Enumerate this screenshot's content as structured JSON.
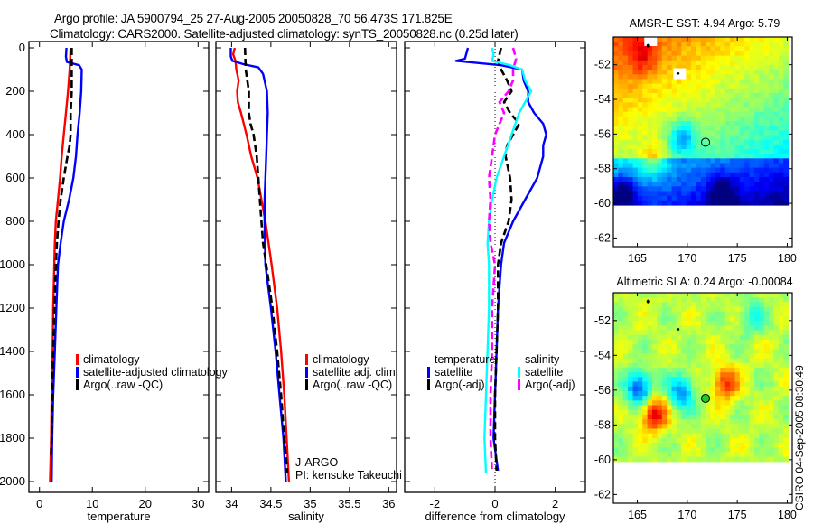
{
  "header": {
    "line1": "Argo profile: JA 5900794_25 27-Aug-2005 20050828_70 56.473S 171.825E",
    "line2": "Climatology: CARS2000. Satellite-adjusted climatology: synTS_20050828.nc (0.25d later)"
  },
  "footer_stamp": "CSIRO 04-Sep-2005 08:30:49",
  "colors": {
    "climatology": "#ff0000",
    "satellite": "#0000ff",
    "argo": "#000000",
    "sal_satellite": "#00ffff",
    "sal_argo": "#ff00ff"
  },
  "chart_data": [
    {
      "type": "line",
      "name": "temperature-profile",
      "xlabel": "temperature",
      "ylabel": "",
      "xlim": [
        -2,
        32
      ],
      "ylim": [
        2050,
        0
      ],
      "xticks": [
        0,
        10,
        20,
        30
      ],
      "yticks": [
        0,
        200,
        400,
        600,
        800,
        1000,
        1200,
        1400,
        1600,
        1800,
        2000
      ],
      "legend": {
        "placement": "center-right",
        "entries": [
          "climatology",
          "satellite-adjusted climatology",
          "Argo(..raw -QC)"
        ]
      },
      "series": [
        {
          "name": "climatology",
          "color_key": "climatology",
          "style": "solid",
          "depth": [
            0,
            50,
            100,
            200,
            300,
            400,
            500,
            600,
            700,
            800,
            900,
            1000,
            1200,
            1400,
            1600,
            1800,
            2000
          ],
          "values": [
            5.9,
            5.8,
            5.7,
            5.4,
            5.0,
            4.6,
            4.2,
            3.9,
            3.5,
            3.1,
            2.9,
            2.8,
            2.6,
            2.5,
            2.3,
            2.2,
            2.0
          ]
        },
        {
          "name": "satellite-adjusted climatology",
          "color_key": "satellite",
          "style": "solid",
          "depth": [
            0,
            40,
            65,
            80,
            100,
            200,
            300,
            400,
            500,
            600,
            700,
            800,
            900,
            1000,
            1200,
            1400,
            1600,
            1800,
            2000
          ],
          "values": [
            5.1,
            5.0,
            5.2,
            7.5,
            8.0,
            7.9,
            7.6,
            7.2,
            6.9,
            6.4,
            5.6,
            4.6,
            4.0,
            3.5,
            3.2,
            2.9,
            2.6,
            2.4,
            2.3
          ]
        },
        {
          "name": "Argo(..raw -QC)",
          "color_key": "argo",
          "style": "dashed",
          "depth": [
            0,
            100,
            200,
            300,
            400,
            450,
            500,
            600,
            700,
            800,
            900,
            1000,
            1200,
            1400,
            1600,
            1800,
            1880
          ],
          "values": [
            6.1,
            6.1,
            6.1,
            5.9,
            5.9,
            5.7,
            5.3,
            4.6,
            4.0,
            3.6,
            3.3,
            3.1,
            2.8,
            2.6,
            2.4,
            2.3,
            2.2
          ]
        }
      ]
    },
    {
      "type": "line",
      "name": "salinity-profile",
      "xlabel": "salinity",
      "ylabel": "",
      "xlim": [
        33.8,
        36.1
      ],
      "ylim": [
        2050,
        0
      ],
      "xticks": [
        34,
        34.5,
        35,
        35.5,
        36
      ],
      "xtick_labels": [
        "34",
        "34.5",
        "35",
        "35.5",
        "36"
      ],
      "legend": {
        "placement": "center-right",
        "entries": [
          "climatology",
          "satellite adj. clim.",
          "Argo(..raw -QC)"
        ]
      },
      "annotations": [
        "J-ARGO",
        "PI: kensuke Takeuchi"
      ],
      "series": [
        {
          "name": "climatology",
          "color_key": "climatology",
          "style": "solid",
          "depth": [
            0,
            30,
            60,
            100,
            150,
            200,
            250,
            300,
            400,
            500,
            600,
            700,
            800,
            1000,
            1200,
            1400,
            1600,
            1800,
            2000
          ],
          "values": [
            34.04,
            34.02,
            34.05,
            34.06,
            34.09,
            34.07,
            34.08,
            34.12,
            34.19,
            34.25,
            34.33,
            34.38,
            34.43,
            34.51,
            34.58,
            34.63,
            34.67,
            34.7,
            34.73
          ]
        },
        {
          "name": "satellite adj. clim.",
          "color_key": "satellite",
          "style": "solid",
          "depth": [
            0,
            40,
            60,
            75,
            90,
            120,
            200,
            300,
            400,
            500,
            600,
            700,
            800,
            1000,
            1200,
            1400,
            1600,
            1800,
            2000
          ],
          "values": [
            33.99,
            33.99,
            34.01,
            34.15,
            34.34,
            34.4,
            34.45,
            34.46,
            34.45,
            34.44,
            34.43,
            34.42,
            34.42,
            34.43,
            34.5,
            34.56,
            34.61,
            34.66,
            34.69
          ]
        },
        {
          "name": "Argo(..raw -QC)",
          "color_key": "argo",
          "style": "dashed",
          "depth": [
            0,
            100,
            200,
            300,
            350,
            400,
            500,
            600,
            700,
            800,
            900,
            1000,
            1200,
            1400,
            1600,
            1800,
            1960
          ],
          "values": [
            34.17,
            34.18,
            34.22,
            34.22,
            34.24,
            34.28,
            34.32,
            34.34,
            34.36,
            34.38,
            34.4,
            34.44,
            34.52,
            34.58,
            34.63,
            34.67,
            34.71
          ]
        }
      ]
    },
    {
      "type": "line",
      "name": "difference-profile",
      "xlabel": "difference from climatology",
      "ylabel": "",
      "xlim": [
        -3,
        3
      ],
      "ylim": [
        2050,
        0
      ],
      "xticks": [
        -2,
        0,
        2
      ],
      "legend": {
        "placement": "center",
        "entries": [
          "temperature",
          "satellite",
          "Argo(-adj)",
          "salinity",
          "satellite",
          "Argo(-adj)"
        ]
      },
      "series": [
        {
          "name": "temperature satellite",
          "color_key": "satellite",
          "style": "solid",
          "depth": [
            0,
            50,
            60,
            80,
            100,
            150,
            200,
            250,
            300,
            350,
            400,
            450,
            500,
            550,
            600,
            700,
            800,
            900,
            1000,
            1100,
            1200,
            1400,
            1600,
            1800,
            1950
          ],
          "values": [
            -0.9,
            -1.0,
            -1.3,
            0.2,
            0.9,
            0.95,
            1.1,
            1.1,
            1.3,
            1.6,
            1.7,
            1.6,
            1.6,
            1.5,
            1.4,
            1.0,
            0.6,
            0.3,
            0.2,
            0.15,
            0.1,
            0.05,
            0.0,
            -0.05,
            0.1
          ]
        },
        {
          "name": "temperature Argo(-adj)",
          "color_key": "argo",
          "style": "dashed",
          "depth": [
            0,
            60,
            100,
            150,
            200,
            250,
            300,
            350,
            400,
            450,
            500,
            600,
            700,
            800,
            900,
            1000,
            1200,
            1400,
            1600,
            1800,
            1950
          ],
          "values": [
            0.2,
            0.1,
            0.2,
            0.4,
            0.55,
            0.3,
            0.5,
            0.8,
            0.6,
            0.4,
            0.35,
            0.5,
            0.55,
            0.45,
            0.2,
            0.1,
            0.1,
            0.05,
            0.0,
            0.0,
            0.05
          ]
        },
        {
          "name": "salinity satellite",
          "color_key": "sal_satellite",
          "style": "solid",
          "depth": [
            0,
            30,
            60,
            80,
            100,
            150,
            200,
            300,
            400,
            500,
            600,
            700,
            800,
            900,
            1000,
            1200,
            1400,
            1600,
            1800,
            1960
          ],
          "values": [
            -0.1,
            -0.05,
            -0.1,
            0.5,
            0.9,
            1.0,
            1.2,
            0.8,
            0.55,
            0.3,
            0.05,
            -0.1,
            -0.2,
            -0.25,
            -0.2,
            -0.2,
            -0.25,
            -0.3,
            -0.35,
            -0.3
          ]
        },
        {
          "name": "salinity Argo(-adj)",
          "color_key": "sal_argo",
          "style": "dashed",
          "depth": [
            0,
            50,
            100,
            150,
            200,
            250,
            300,
            350,
            400,
            500,
            600,
            700,
            800,
            900,
            1000,
            1200,
            1400,
            1600,
            1800,
            1960
          ],
          "values": [
            0.6,
            0.7,
            0.6,
            0.6,
            0.45,
            0.15,
            0.3,
            0.15,
            0.0,
            -0.1,
            -0.2,
            -0.15,
            -0.2,
            -0.15,
            0.0,
            -0.1,
            -0.1,
            -0.15,
            -0.15,
            -0.1
          ]
        }
      ]
    },
    {
      "type": "heatmap",
      "name": "sst-map",
      "title": "AMSR-E SST: 4.94 Argo: 5.79",
      "xlim": [
        162.6,
        180.5
      ],
      "ylim": [
        -62.5,
        -50.4
      ],
      "xticks": [
        165,
        170,
        175,
        180
      ],
      "yticks": [
        -52,
        -54,
        -56,
        -58,
        -60,
        -62
      ],
      "data_extent": {
        "lon": [
          162.6,
          180.1
        ],
        "lat": [
          -60.1,
          -50.4
        ]
      },
      "float_position": {
        "lon": 171.825,
        "lat": -56.473
      },
      "colormap": "jet",
      "features": [
        {
          "kind": "cold",
          "lon": 163.5,
          "lat": -59.5,
          "strength": 1.0
        },
        {
          "kind": "cold",
          "lon": 169.5,
          "lat": -56.2,
          "strength": 0.7
        },
        {
          "kind": "cold",
          "lon": 173.5,
          "lat": -59.5,
          "strength": 0.7
        },
        {
          "kind": "warm",
          "lon": 165.5,
          "lat": -51.5,
          "strength": 0.8
        },
        {
          "kind": "warm",
          "lon": 166.5,
          "lat": -57.5,
          "strength": 0.8
        }
      ]
    },
    {
      "type": "heatmap",
      "name": "sla-map",
      "title": "Altimetric SLA: 0.24 Argo: -0.00084",
      "xlim": [
        162.6,
        180.5
      ],
      "ylim": [
        -62.5,
        -50.4
      ],
      "xticks": [
        165,
        170,
        175,
        180
      ],
      "yticks": [
        -52,
        -54,
        -56,
        -58,
        -60,
        -62
      ],
      "data_extent": {
        "lon": [
          162.6,
          180.1
        ],
        "lat": [
          -60.1,
          -50.4
        ]
      },
      "float_position": {
        "lon": 171.825,
        "lat": -56.473
      },
      "colormap": "jet",
      "features": [
        {
          "kind": "low",
          "lon": 165.2,
          "lat": -55.9,
          "strength": 1.0
        },
        {
          "kind": "low",
          "lon": 169.4,
          "lat": -56.1,
          "strength": 0.8
        },
        {
          "kind": "high",
          "lon": 166.6,
          "lat": -57.4,
          "strength": 1.0
        },
        {
          "kind": "high",
          "lon": 173.8,
          "lat": -55.6,
          "strength": 0.8
        },
        {
          "kind": "low",
          "lon": 176.5,
          "lat": -51.8,
          "strength": 0.4
        }
      ]
    }
  ]
}
